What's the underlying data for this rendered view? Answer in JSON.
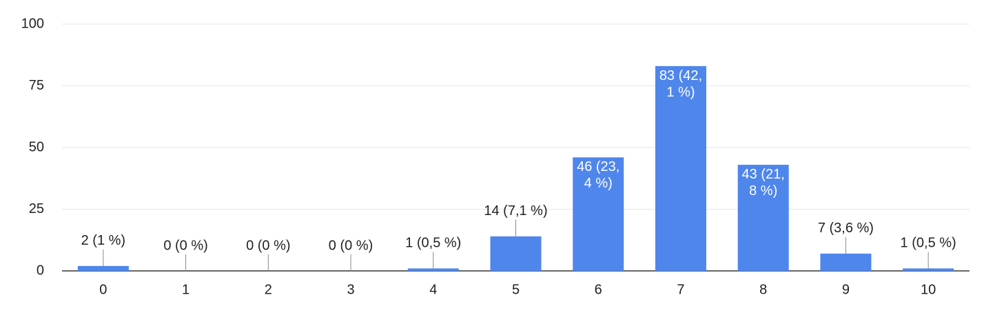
{
  "chart_data": {
    "type": "bar",
    "categories": [
      "0",
      "1",
      "2",
      "3",
      "4",
      "5",
      "6",
      "7",
      "8",
      "9",
      "10"
    ],
    "values": [
      2,
      0,
      0,
      0,
      1,
      14,
      46,
      83,
      43,
      7,
      1
    ],
    "value_labels": [
      "2 (1 %)",
      "0 (0 %)",
      "0 (0 %)",
      "0 (0 %)",
      "1 (0,5 %)",
      "14 (7,1 %)",
      "46 (23,4 %)",
      "83 (42,1 %)",
      "43 (21,8 %)",
      "7 (3,6 %)",
      "1 (0,5 %)"
    ],
    "color": "#4f86ec",
    "ylim": [
      0,
      100
    ],
    "yticks": [
      0,
      25,
      50,
      75,
      100
    ],
    "grid": true
  }
}
